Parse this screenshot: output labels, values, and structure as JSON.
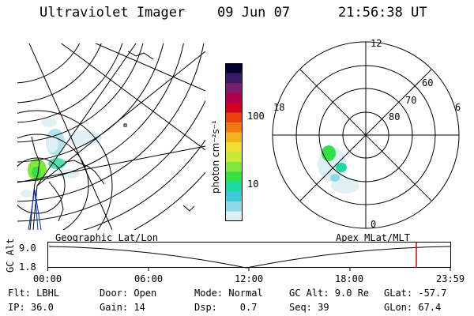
{
  "header": {
    "instrument": "Ultraviolet Imager",
    "date": "09 Jun 07",
    "time": "21:56:38 UT"
  },
  "colorbar": {
    "unit_label": "photon cm⁻²s⁻¹",
    "ticks": [
      "100",
      "10"
    ],
    "colors": [
      "#000033",
      "#3a1a66",
      "#7a1f6e",
      "#b0004a",
      "#d40020",
      "#e94010",
      "#f07a10",
      "#f5b020",
      "#eedd33",
      "#c8e83a",
      "#7fe63a",
      "#35df4a",
      "#20d9a0",
      "#40c9d8",
      "#8fd8e8",
      "#ddeef4"
    ]
  },
  "polar_plot": {
    "mlt_labels": [
      "12",
      "18",
      "6",
      "0"
    ],
    "lat_labels": [
      "60",
      "70",
      "80"
    ]
  },
  "timeline": {
    "left_label": "Geographic Lat/Lon",
    "right_label": "Apex MLat/MLT",
    "y_axis_label": "GC Alt",
    "y_ticks": [
      "9.0",
      "1.8"
    ],
    "x_ticks": [
      "00:00",
      "06:00",
      "12:00",
      "18:00",
      "23:59"
    ],
    "marker_color": "#e00000"
  },
  "info": {
    "row1": [
      {
        "name": "filter",
        "text": "Flt: LBHL"
      },
      {
        "name": "door",
        "text": "Door: Open"
      },
      {
        "name": "mode",
        "text": "Mode: Normal"
      },
      {
        "name": "gc-alt",
        "text": "GC Alt: 9.0 Re"
      },
      {
        "name": "glat",
        "text": "GLat: -57.7"
      }
    ],
    "row2": [
      {
        "name": "ip",
        "text": "IP: 36.0"
      },
      {
        "name": "gain",
        "text": "Gain: 14"
      },
      {
        "name": "dsp",
        "text": "Dsp:    0.7"
      },
      {
        "name": "seq",
        "text": "Seq: 39"
      },
      {
        "name": "glon",
        "text": "GLon: 67.4"
      }
    ]
  }
}
